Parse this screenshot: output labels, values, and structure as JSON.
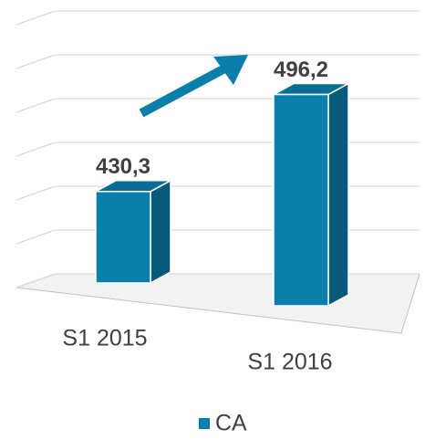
{
  "chart_data": {
    "type": "bar3d",
    "categories": [
      "S1 2015",
      "S1 2016"
    ],
    "series": [
      {
        "name": "CA",
        "color": "#0b7fab",
        "values": [
          430.3,
          496.2
        ],
        "value_labels": [
          "430,3",
          "496,2"
        ]
      }
    ],
    "ylim": [
      380,
      500
    ],
    "yticks": [
      380,
      400,
      420,
      440,
      460,
      480,
      500
    ],
    "grid": true,
    "legend": "bottom"
  }
}
